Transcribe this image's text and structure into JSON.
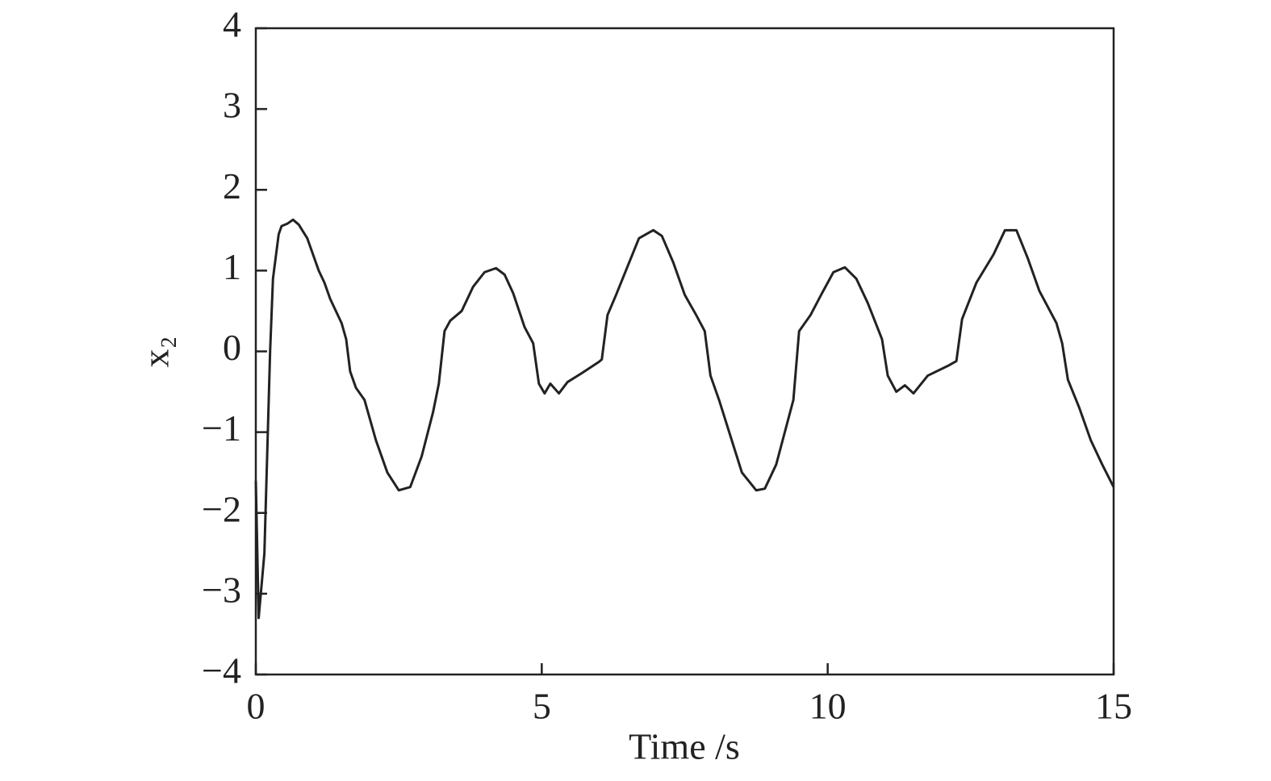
{
  "chart_data": {
    "type": "line",
    "xlabel": "Time /s",
    "ylabel": "x₂",
    "xlim": [
      0,
      15
    ],
    "ylim": [
      -4,
      4
    ],
    "xticks": [
      0,
      5,
      10,
      15
    ],
    "yticks": [
      {
        "value": -4,
        "label": "−4"
      },
      {
        "value": -3,
        "label": "−3"
      },
      {
        "value": -2,
        "label": "−2"
      },
      {
        "value": -1,
        "label": "−1"
      },
      0,
      1,
      2,
      3,
      4
    ],
    "grid": false,
    "series": [
      {
        "color": "#222222",
        "x": [
          0,
          0.05,
          0.15,
          0.25,
          0.3,
          0.4,
          0.45,
          0.55,
          0.65,
          0.75,
          0.9,
          1.1,
          1.2,
          1.3,
          1.5,
          1.58,
          1.65,
          1.75,
          1.9,
          2.1,
          2.3,
          2.5,
          2.7,
          2.9,
          3.1,
          3.2,
          3.3,
          3.4,
          3.6,
          3.8,
          4.0,
          4.2,
          4.35,
          4.5,
          4.7,
          4.85,
          4.95,
          5.05,
          5.15,
          5.3,
          5.45,
          5.7,
          6.0,
          6.05,
          6.15,
          6.3,
          6.5,
          6.7,
          6.95,
          7.1,
          7.3,
          7.5,
          7.7,
          7.85,
          7.95,
          8.1,
          8.3,
          8.5,
          8.75,
          8.9,
          9.1,
          9.4,
          9.5,
          9.7,
          9.9,
          10.1,
          10.3,
          10.5,
          10.7,
          10.95,
          11.05,
          11.2,
          11.35,
          11.5,
          11.75,
          12.1,
          12.25,
          12.35,
          12.6,
          12.9,
          13.1,
          13.3,
          13.5,
          13.7,
          14.0,
          14.1,
          14.2,
          14.4,
          14.6,
          14.8,
          15
        ],
        "values": [
          -1.6,
          -3.3,
          -2.5,
          0,
          0.9,
          1.45,
          1.55,
          1.58,
          1.63,
          1.57,
          1.4,
          1.0,
          0.85,
          0.65,
          0.35,
          0.15,
          -0.25,
          -0.45,
          -0.6,
          -1.1,
          -1.5,
          -1.72,
          -1.68,
          -1.3,
          -0.75,
          -0.4,
          0.25,
          0.38,
          0.5,
          0.8,
          0.98,
          1.03,
          0.95,
          0.72,
          0.3,
          0.1,
          -0.4,
          -0.52,
          -0.4,
          -0.52,
          -0.38,
          -0.27,
          -0.13,
          -0.1,
          0.45,
          0.7,
          1.05,
          1.4,
          1.5,
          1.43,
          1.1,
          0.7,
          0.45,
          0.25,
          -0.3,
          -0.6,
          -1.05,
          -1.5,
          -1.72,
          -1.7,
          -1.4,
          -0.6,
          0.25,
          0.45,
          0.72,
          0.98,
          1.04,
          0.9,
          0.6,
          0.15,
          -0.3,
          -0.5,
          -0.42,
          -0.52,
          -0.3,
          -0.18,
          -0.12,
          0.4,
          0.85,
          1.2,
          1.5,
          1.5,
          1.15,
          0.75,
          0.35,
          0.1,
          -0.35,
          -0.7,
          -1.1,
          -1.4,
          -1.68
        ]
      }
    ]
  }
}
